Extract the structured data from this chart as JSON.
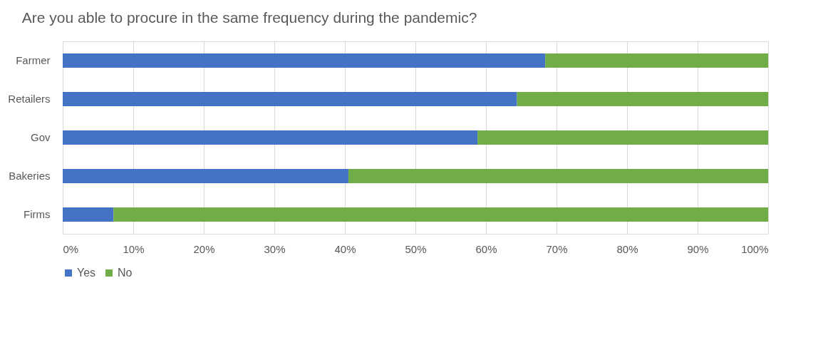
{
  "chart_data": {
    "type": "bar",
    "orientation": "horizontal",
    "stacked": true,
    "title": "Are you able to procure  in the same frequency during the pandemic?",
    "categories": [
      "Farmer",
      "Retailers",
      "Gov",
      "Bakeries",
      "Firms"
    ],
    "series": [
      {
        "name": "Yes",
        "color": "#4472c4",
        "values": [
          68.4,
          64.4,
          58.8,
          40.5,
          7.2
        ]
      },
      {
        "name": "No",
        "color": "#70ad47",
        "values": [
          31.6,
          35.6,
          41.2,
          59.5,
          92.8
        ]
      }
    ],
    "xlim": [
      0,
      100
    ],
    "xticks": [
      {
        "value": 0,
        "label": "0%"
      },
      {
        "value": 10,
        "label": "10%"
      },
      {
        "value": 20,
        "label": "20%"
      },
      {
        "value": 30,
        "label": "30%"
      },
      {
        "value": 40,
        "label": "40%"
      },
      {
        "value": 50,
        "label": "50%"
      },
      {
        "value": 60,
        "label": "60%"
      },
      {
        "value": 70,
        "label": "70%"
      },
      {
        "value": 80,
        "label": "80%"
      },
      {
        "value": 90,
        "label": "90%"
      },
      {
        "value": 100,
        "label": "100%"
      }
    ],
    "grid": "x",
    "legend": "bottom"
  }
}
